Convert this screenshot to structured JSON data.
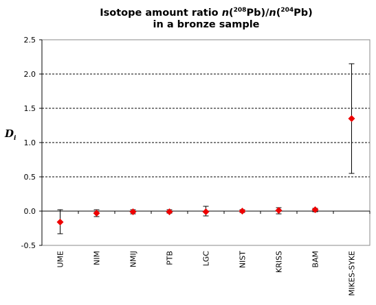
{
  "chart_data": {
    "type": "scatter",
    "title_line1_prefix": "Isotope amount ratio ",
    "title_n": "n",
    "title_open": "(",
    "title_mass1": "208",
    "title_elem1": "Pb)/",
    "title_mass2": "204",
    "title_elem2": "Pb)",
    "title_line2": "in a bronze sample",
    "ylabel": "D",
    "ylabel_sub": "i",
    "categories": [
      "UME",
      "NIM",
      "NMIJ",
      "PTB",
      "LGC",
      "NIST",
      "KRISS",
      "BAM",
      "MIKES-SYKE"
    ],
    "values": [
      -0.16,
      -0.03,
      -0.01,
      -0.01,
      -0.01,
      0.0,
      0.01,
      0.02,
      1.35
    ],
    "err_low": [
      -0.33,
      -0.08,
      -0.04,
      -0.03,
      -0.07,
      -0.02,
      -0.04,
      -0.01,
      0.55
    ],
    "err_high": [
      0.02,
      0.02,
      0.02,
      0.02,
      0.07,
      0.02,
      0.05,
      0.04,
      2.15
    ],
    "ylim": [
      -0.5,
      2.5
    ],
    "yticks": [
      "-0.5",
      "0.0",
      "0.5",
      "1.0",
      "1.5",
      "2.0",
      "2.5"
    ],
    "grid": "horizontal-dashed",
    "marker_color": "#ee0000"
  }
}
